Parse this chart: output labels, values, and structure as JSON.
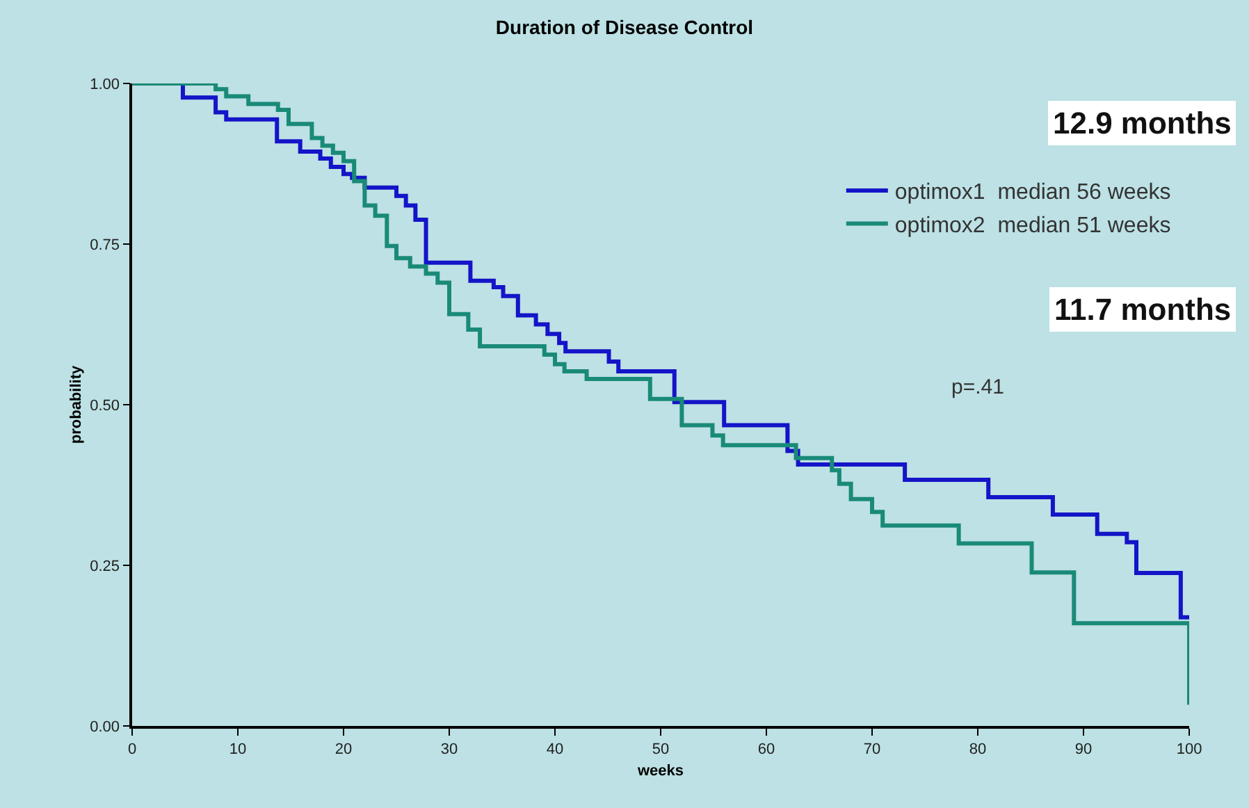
{
  "chart_data": {
    "type": "step",
    "title": "Duration of Disease Control",
    "xlabel": "weeks",
    "ylabel": "probability",
    "series": [
      {
        "name": "optimox1  median 56 weeks",
        "color": "#1414c8",
        "x": [
          0,
          4.8,
          7.9,
          8.9,
          13.7,
          15.9,
          17.8,
          18.8,
          20,
          20.8,
          22,
          25,
          25.9,
          26.8,
          27.8,
          32,
          34.2,
          35.1,
          36.5,
          38.2,
          39.3,
          40.4,
          41,
          45.1,
          46,
          51.3,
          56,
          62,
          63,
          73.1,
          81,
          87.1,
          91.3,
          94.1,
          95,
          99.2,
          100
        ],
        "values": [
          1.0,
          0.978,
          0.955,
          0.944,
          0.91,
          0.894,
          0.883,
          0.87,
          0.859,
          0.853,
          0.838,
          0.825,
          0.81,
          0.788,
          0.721,
          0.693,
          0.683,
          0.669,
          0.639,
          0.625,
          0.61,
          0.596,
          0.583,
          0.567,
          0.552,
          0.504,
          0.468,
          0.428,
          0.407,
          0.383,
          0.356,
          0.329,
          0.299,
          0.286,
          0.238,
          0.169,
          0.169
        ]
      },
      {
        "name": "optimox2  median 51 weeks",
        "color": "#1a8a78",
        "x": [
          0,
          7.9,
          8.9,
          11,
          13.8,
          14.8,
          17,
          18,
          19,
          20,
          21,
          22,
          23,
          24.1,
          25,
          26.3,
          27.8,
          28.9,
          30,
          31.8,
          32.9,
          39,
          40,
          40.9,
          43,
          49,
          52,
          54.9,
          55.9,
          62.8,
          66.2,
          66.9,
          68,
          70,
          71,
          78.2,
          85.1,
          89.1,
          100,
          100
        ],
        "values": [
          1.0,
          0.991,
          0.98,
          0.968,
          0.959,
          0.937,
          0.915,
          0.903,
          0.892,
          0.879,
          0.848,
          0.81,
          0.794,
          0.747,
          0.728,
          0.715,
          0.704,
          0.69,
          0.641,
          0.617,
          0.591,
          0.578,
          0.563,
          0.552,
          0.54,
          0.509,
          0.468,
          0.452,
          0.437,
          0.417,
          0.398,
          0.377,
          0.353,
          0.333,
          0.312,
          0.284,
          0.239,
          0.16,
          0.16,
          0.033
        ]
      }
    ],
    "xlim": [
      0,
      100
    ],
    "xticks": [
      0,
      10,
      20,
      30,
      40,
      50,
      60,
      70,
      80,
      90,
      100
    ],
    "ylim": [
      0,
      1
    ],
    "yticks": [
      {
        "value": 0,
        "label": "0.00"
      },
      {
        "value": 0.25,
        "label": "0.25"
      },
      {
        "value": 0.5,
        "label": "0.50"
      },
      {
        "value": 0.75,
        "label": "0.75"
      },
      {
        "value": 1,
        "label": "1.00"
      }
    ],
    "annotations": [
      "12.9 months",
      "11.7 months",
      "p=.41"
    ],
    "legend": "top right",
    "grid": false,
    "marker": "none",
    "line_style": "solid"
  }
}
